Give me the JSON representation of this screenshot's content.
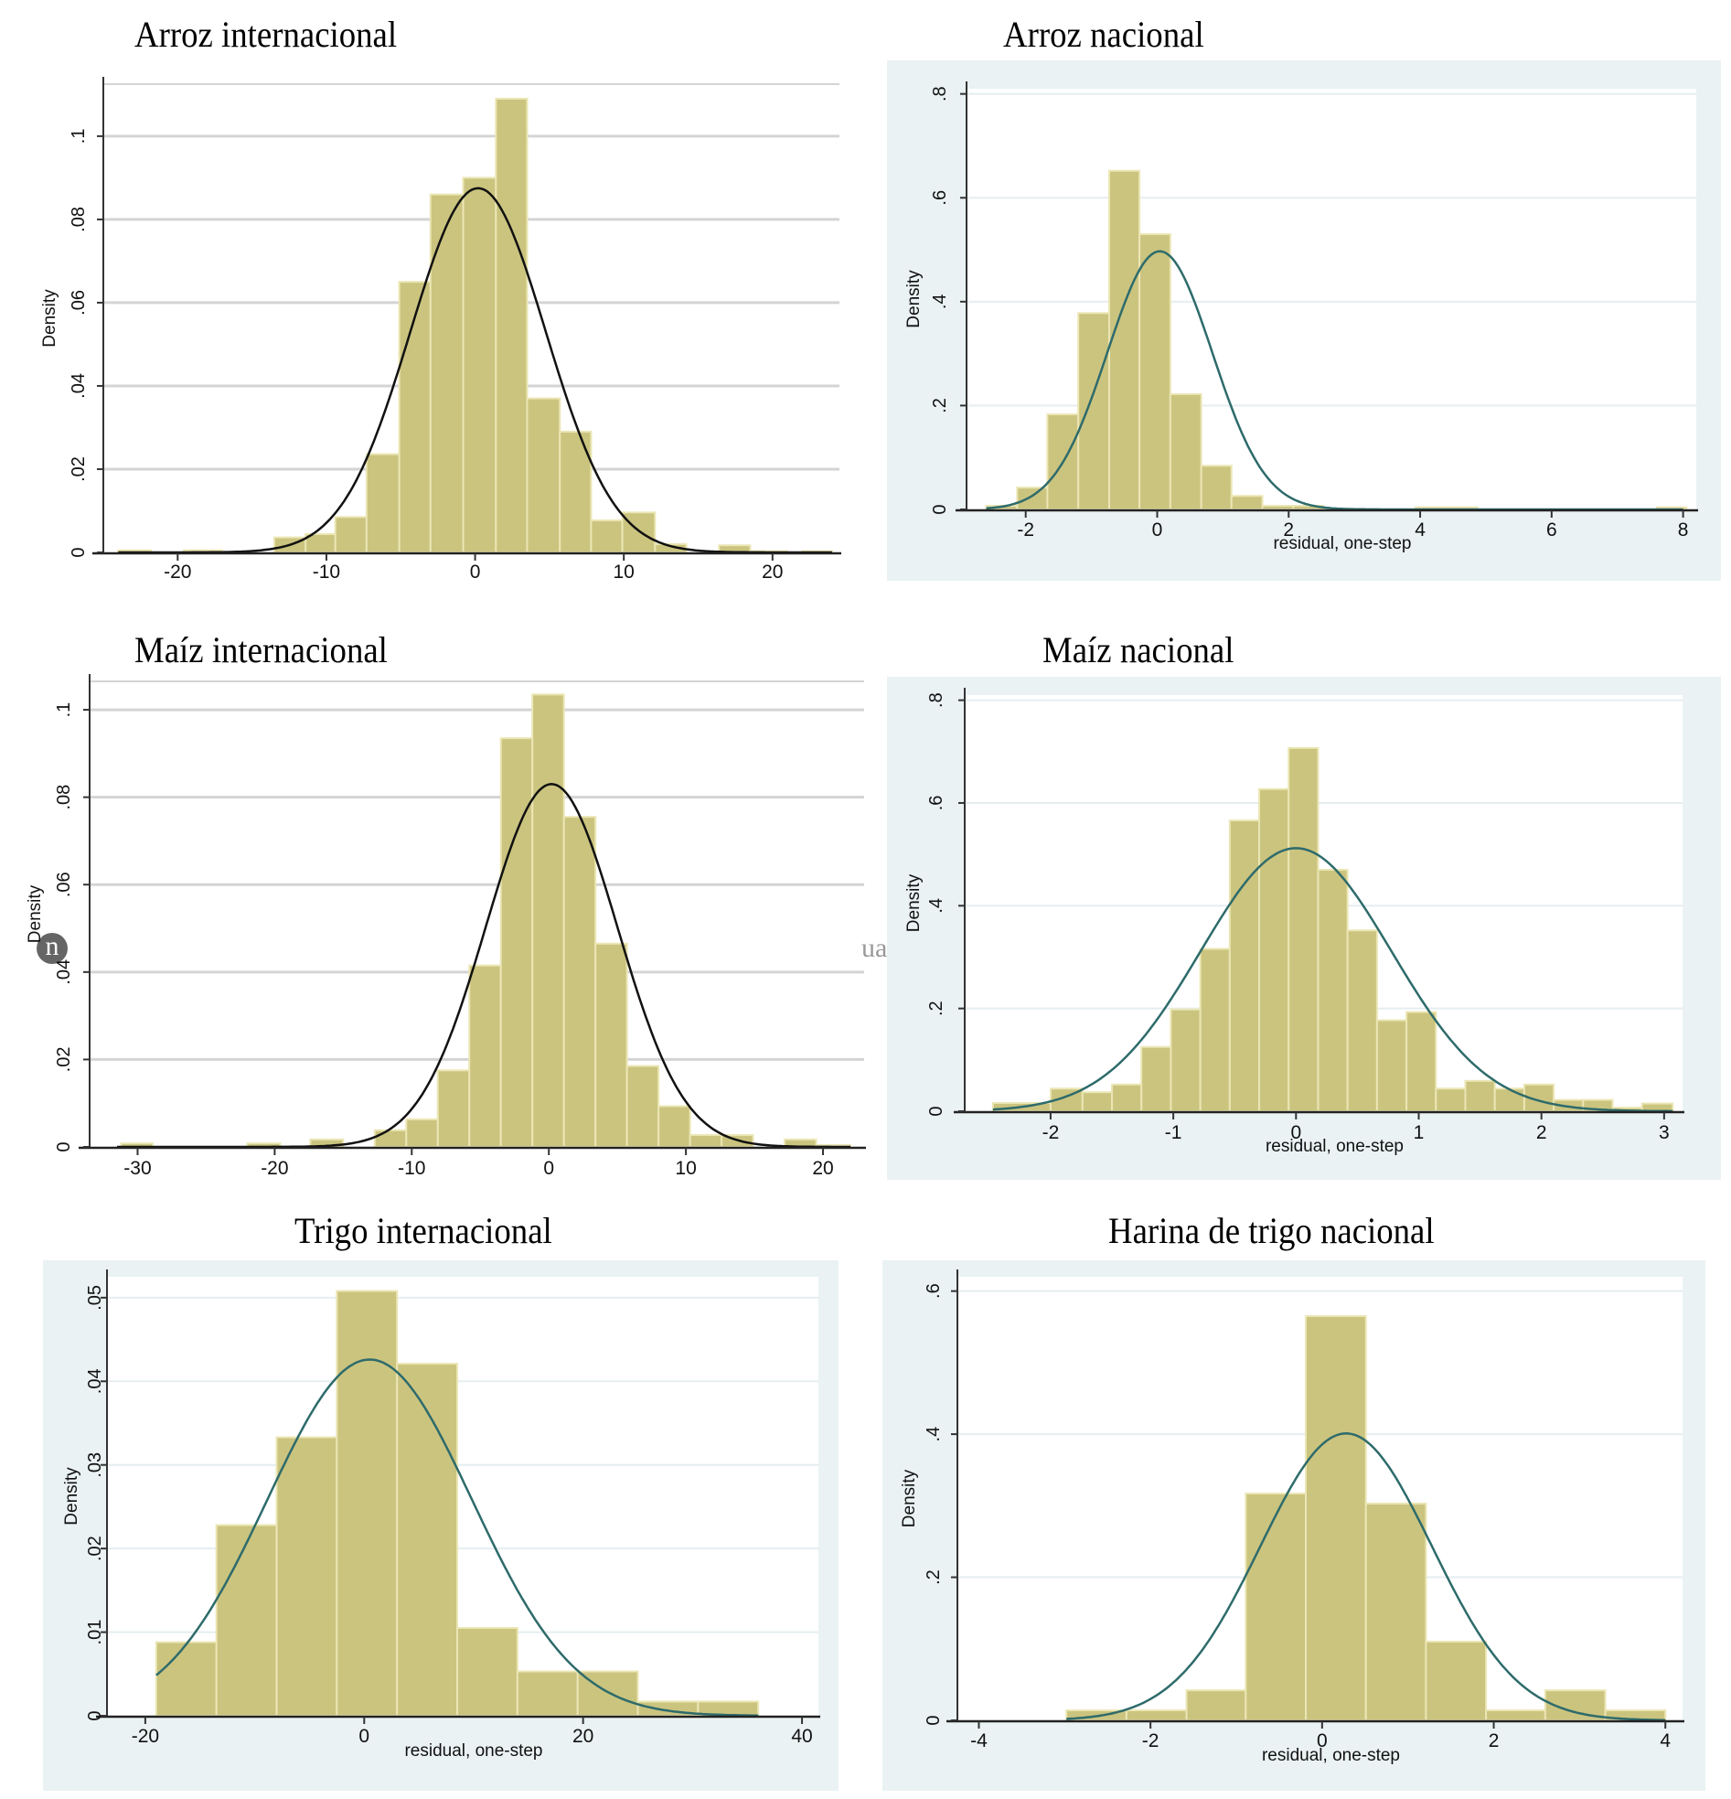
{
  "figure": {
    "watermark_glyph": "n",
    "watermark_fragment": "ua"
  },
  "chart_data": [
    {
      "id": "arroz-int",
      "type": "bar",
      "title": "Arroz internacional",
      "style": "gray-grid",
      "xlabel": "",
      "ylabel": "Density",
      "xlim": [
        -25,
        24.5
      ],
      "ylim": [
        0,
        0.1125
      ],
      "xticks": [
        -20,
        -10,
        0,
        10,
        20
      ],
      "xtick_labels": [
        "-20",
        "-10",
        "0",
        "10",
        "20"
      ],
      "yticks": [
        0,
        0.02,
        0.04,
        0.06,
        0.08,
        0.1
      ],
      "ytick_labels": [
        "0",
        ".02",
        ".04",
        ".06",
        ".08",
        ".1"
      ],
      "grid": true,
      "bins": [
        [
          -24.0,
          -21.8,
          0.0005
        ],
        [
          -19.6,
          -17.0,
          0.0005
        ],
        [
          -13.5,
          -11.4,
          0.0036
        ],
        [
          -11.4,
          -9.4,
          0.0044
        ],
        [
          -9.4,
          -7.3,
          0.0085
        ],
        [
          -7.3,
          -5.1,
          0.0236
        ],
        [
          -5.1,
          -3.0,
          0.065
        ],
        [
          -3.0,
          -0.8,
          0.086
        ],
        [
          -0.8,
          1.4,
          0.09
        ],
        [
          1.4,
          3.5,
          0.109
        ],
        [
          3.5,
          5.7,
          0.037
        ],
        [
          5.7,
          7.8,
          0.029
        ],
        [
          7.8,
          9.9,
          0.0077
        ],
        [
          9.9,
          12.1,
          0.0096
        ],
        [
          12.1,
          14.2,
          0.002
        ],
        [
          16.4,
          18.5,
          0.0017
        ],
        [
          18.5,
          21.0,
          0.0003
        ],
        [
          22.0,
          24.0,
          0.0003
        ]
      ],
      "normal": {
        "mean": 0.2,
        "sd": 4.55,
        "peak": 0.0875,
        "range": [
          -24,
          24
        ]
      }
    },
    {
      "id": "arroz-nac",
      "type": "bar",
      "title": "Arroz nacional",
      "style": "stata",
      "xlabel": "residual, one-step",
      "ylabel": "Density",
      "xlim": [
        -2.9,
        8.2
      ],
      "ylim": [
        0,
        0.81
      ],
      "xticks": [
        -2,
        0,
        2,
        4,
        6,
        8
      ],
      "xtick_labels": [
        "-2",
        "0",
        "2",
        "4",
        "6",
        "8"
      ],
      "yticks": [
        0,
        0.2,
        0.4,
        0.6,
        0.8
      ],
      "ytick_labels": [
        "0",
        ".2",
        ".4",
        ".6",
        ".8"
      ],
      "grid": true,
      "bins": [
        [
          -2.6,
          -2.13,
          0.007
        ],
        [
          -2.13,
          -1.67,
          0.042
        ],
        [
          -1.67,
          -1.2,
          0.183
        ],
        [
          -1.2,
          -0.73,
          0.378
        ],
        [
          -0.73,
          -0.27,
          0.652
        ],
        [
          -0.27,
          0.2,
          0.53
        ],
        [
          0.2,
          0.67,
          0.222
        ],
        [
          0.67,
          1.13,
          0.084
        ],
        [
          1.13,
          1.6,
          0.026
        ],
        [
          1.6,
          2.07,
          0.007
        ],
        [
          2.07,
          2.53,
          0.007
        ],
        [
          3.93,
          4.87,
          0.004
        ],
        [
          7.6,
          8.05,
          0.004
        ]
      ],
      "normal": {
        "mean": 0.04,
        "sd": 0.8,
        "peak": 0.497,
        "range": [
          -2.6,
          8.0
        ]
      }
    },
    {
      "id": "maiz-int",
      "type": "bar",
      "title": "Maíz internacional",
      "style": "gray-grid",
      "xlabel": "",
      "ylabel": "Density",
      "xlim": [
        -33.5,
        23
      ],
      "ylim": [
        0,
        0.1065
      ],
      "xticks": [
        -30,
        -20,
        -10,
        0,
        10,
        20
      ],
      "xtick_labels": [
        "-30",
        "-20",
        "-10",
        "0",
        "10",
        "20"
      ],
      "yticks": [
        0,
        0.02,
        0.04,
        0.06,
        0.08,
        0.1
      ],
      "ytick_labels": [
        "0",
        ".02",
        ".04",
        ".06",
        ".08",
        ".1"
      ],
      "grid": true,
      "bins": [
        [
          -31.2,
          -28.9,
          0.0008
        ],
        [
          -22.0,
          -19.6,
          0.0008
        ],
        [
          -17.4,
          -15.0,
          0.0017
        ],
        [
          -12.7,
          -10.4,
          0.0038
        ],
        [
          -10.4,
          -8.1,
          0.0063
        ],
        [
          -8.1,
          -5.8,
          0.0175
        ],
        [
          -5.8,
          -3.5,
          0.0415
        ],
        [
          -3.5,
          -1.2,
          0.0935
        ],
        [
          -1.2,
          1.1,
          0.1035
        ],
        [
          1.1,
          3.4,
          0.0755
        ],
        [
          3.4,
          5.7,
          0.0465
        ],
        [
          5.7,
          8.0,
          0.0185
        ],
        [
          8.0,
          10.3,
          0.0093
        ],
        [
          10.3,
          12.6,
          0.0027
        ],
        [
          12.6,
          14.9,
          0.0027
        ],
        [
          17.2,
          19.5,
          0.0017
        ],
        [
          19.5,
          22.0,
          0.0004
        ]
      ],
      "normal": {
        "mean": 0.2,
        "sd": 4.8,
        "peak": 0.083,
        "range": [
          -31.5,
          22
        ]
      }
    },
    {
      "id": "maiz-nac",
      "type": "bar",
      "title": "Maíz nacional",
      "style": "stata",
      "xlabel": "residual, one-step",
      "ylabel": "Density",
      "xlim": [
        -2.7,
        3.15
      ],
      "ylim": [
        0,
        0.81
      ],
      "xticks": [
        -2,
        -1,
        0,
        1,
        2,
        3
      ],
      "xtick_labels": [
        "-2",
        "-1",
        "0",
        "1",
        "2",
        "3"
      ],
      "yticks": [
        0,
        0.2,
        0.4,
        0.6,
        0.8
      ],
      "ytick_labels": [
        "0",
        ".2",
        ".4",
        ".6",
        ".8"
      ],
      "grid": true,
      "bins": [
        [
          -2.47,
          -2.0,
          0.016
        ],
        [
          -2.0,
          -1.74,
          0.044
        ],
        [
          -1.74,
          -1.5,
          0.037
        ],
        [
          -1.5,
          -1.26,
          0.052
        ],
        [
          -1.26,
          -1.02,
          0.125
        ],
        [
          -1.02,
          -0.78,
          0.198
        ],
        [
          -0.78,
          -0.54,
          0.316
        ],
        [
          -0.54,
          -0.3,
          0.566
        ],
        [
          -0.3,
          -0.06,
          0.627
        ],
        [
          -0.06,
          0.18,
          0.707
        ],
        [
          0.18,
          0.42,
          0.47
        ],
        [
          0.42,
          0.66,
          0.352
        ],
        [
          0.66,
          0.9,
          0.177
        ],
        [
          0.9,
          1.14,
          0.193
        ],
        [
          1.14,
          1.38,
          0.044
        ],
        [
          1.38,
          1.62,
          0.059
        ],
        [
          1.62,
          1.86,
          0.044
        ],
        [
          1.86,
          2.1,
          0.052
        ],
        [
          2.1,
          2.34,
          0.022
        ],
        [
          2.34,
          2.58,
          0.022
        ],
        [
          2.58,
          2.82,
          0.007
        ],
        [
          2.82,
          3.07,
          0.015
        ]
      ],
      "normal": {
        "mean": 0.0,
        "sd": 0.78,
        "peak": 0.512,
        "range": [
          -2.47,
          3.07
        ]
      }
    },
    {
      "id": "trigo-int",
      "type": "bar",
      "title": "Trigo internacional",
      "style": "stata",
      "xlabel": "residual, one-step",
      "ylabel": "Density",
      "xlim": [
        -23.5,
        41.5
      ],
      "ylim": [
        0,
        0.0525
      ],
      "xticks": [
        -20,
        0,
        20,
        40
      ],
      "xtick_labels": [
        "-20",
        "0",
        "20",
        "40"
      ],
      "yticks": [
        0,
        0.01,
        0.02,
        0.03,
        0.04,
        0.05
      ],
      "ytick_labels": [
        "0",
        ".01",
        ".02",
        ".03",
        ".04",
        ".05"
      ],
      "grid": true,
      "bins": [
        [
          -19.0,
          -13.5,
          0.0088
        ],
        [
          -13.5,
          -8.0,
          0.0228
        ],
        [
          -8.0,
          -2.5,
          0.0333
        ],
        [
          -2.5,
          3.0,
          0.0508
        ],
        [
          3.0,
          8.5,
          0.0421
        ],
        [
          8.5,
          14.0,
          0.0105
        ],
        [
          14.0,
          19.5,
          0.0053
        ],
        [
          19.5,
          25.0,
          0.0053
        ],
        [
          25.0,
          30.5,
          0.0017
        ],
        [
          30.5,
          36.0,
          0.0017
        ]
      ],
      "normal": {
        "mean": 0.5,
        "sd": 9.35,
        "peak": 0.0426,
        "range": [
          -19,
          36
        ]
      }
    },
    {
      "id": "harina-nac",
      "type": "bar",
      "title": "Harina de trigo nacional",
      "style": "stata",
      "xlabel": "residual, one-step",
      "ylabel": "Density",
      "xlim": [
        -4.25,
        4.2
      ],
      "ylim": [
        0,
        0.62
      ],
      "xticks": [
        -4,
        -2,
        0,
        2,
        4
      ],
      "xtick_labels": [
        "-4",
        "-2",
        "0",
        "2",
        "4"
      ],
      "yticks": [
        0,
        0.2,
        0.4,
        0.6
      ],
      "ytick_labels": [
        "0",
        ".2",
        ".4",
        ".6"
      ],
      "grid": true,
      "bins": [
        [
          -2.98,
          -2.28,
          0.014
        ],
        [
          -2.28,
          -1.58,
          0.014
        ],
        [
          -1.58,
          -0.89,
          0.042
        ],
        [
          -0.89,
          -0.19,
          0.317
        ],
        [
          -0.19,
          0.51,
          0.565
        ],
        [
          0.51,
          1.21,
          0.303
        ],
        [
          1.21,
          1.91,
          0.11
        ],
        [
          1.91,
          2.6,
          0.014
        ],
        [
          2.6,
          3.3,
          0.042
        ],
        [
          3.3,
          4.0,
          0.014
        ]
      ],
      "normal": {
        "mean": 0.28,
        "sd": 1.0,
        "peak": 0.401,
        "range": [
          -2.98,
          4.0
        ]
      }
    }
  ]
}
